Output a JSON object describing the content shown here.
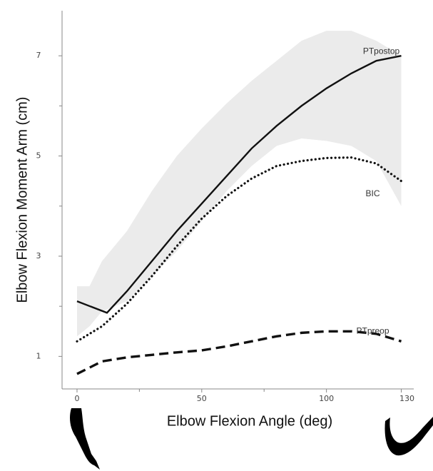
{
  "chart_data": {
    "type": "line",
    "x_label": "Elbow Flexion Angle (deg)",
    "y_label": "Elbow Flexion Moment Arm (cm)",
    "xlim": [
      -6,
      135
    ],
    "ylim": [
      0.35,
      7.9
    ],
    "xticks": [
      0,
      50,
      100,
      130
    ],
    "x_minor_ticks": [
      25,
      75
    ],
    "yticks": [
      1,
      3,
      5,
      7
    ],
    "y_minor_ticks": [
      2,
      4,
      6
    ],
    "band": {
      "color": "#ebebeb",
      "x": [
        0,
        5,
        10,
        20,
        30,
        40,
        50,
        60,
        70,
        80,
        90,
        100,
        110,
        120,
        130
      ],
      "upper": [
        2.4,
        2.4,
        2.9,
        3.5,
        4.3,
        5.0,
        5.55,
        6.05,
        6.5,
        6.9,
        7.3,
        7.5,
        7.5,
        7.3,
        7.0
      ],
      "lower": [
        1.4,
        1.6,
        1.9,
        2.1,
        2.6,
        3.1,
        3.7,
        4.3,
        4.8,
        5.2,
        5.35,
        5.3,
        5.2,
        4.9,
        4.0
      ]
    },
    "series": [
      {
        "name": "PTpostop",
        "color": "#111111",
        "style": "solid",
        "x": [
          0,
          12,
          20,
          30,
          40,
          50,
          60,
          70,
          80,
          90,
          100,
          110,
          120,
          130
        ],
        "values": [
          2.1,
          1.87,
          2.3,
          2.9,
          3.5,
          4.05,
          4.6,
          5.15,
          5.6,
          6.0,
          6.35,
          6.65,
          6.9,
          7.0
        ]
      },
      {
        "name": "BIC",
        "color": "#111111",
        "style": "dotted",
        "x": [
          0,
          10,
          20,
          30,
          40,
          50,
          60,
          70,
          80,
          90,
          100,
          110,
          120,
          130
        ],
        "values": [
          1.3,
          1.6,
          2.05,
          2.6,
          3.2,
          3.75,
          4.2,
          4.55,
          4.8,
          4.9,
          4.96,
          4.97,
          4.85,
          4.5
        ]
      },
      {
        "name": "PTpreop",
        "color": "#111111",
        "style": "dashed",
        "x": [
          0,
          10,
          20,
          30,
          40,
          50,
          60,
          70,
          80,
          90,
          100,
          110,
          120,
          130
        ],
        "values": [
          0.65,
          0.9,
          0.98,
          1.03,
          1.08,
          1.12,
          1.2,
          1.3,
          1.4,
          1.47,
          1.5,
          1.5,
          1.45,
          1.3
        ]
      }
    ]
  }
}
